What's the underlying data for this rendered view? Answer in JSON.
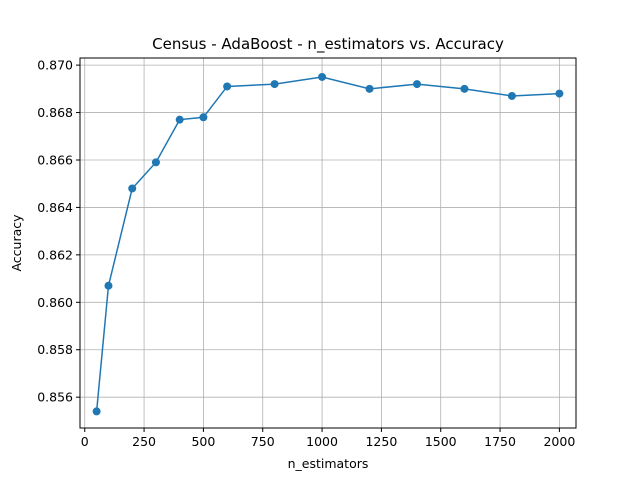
{
  "chart_data": {
    "type": "line",
    "title": "Census - AdaBoost - n_estimators vs. Accuracy",
    "xlabel": "n_estimators",
    "ylabel": "Accuracy",
    "xlim": [
      -20,
      2070
    ],
    "ylim": [
      0.8547,
      0.8703
    ],
    "x_ticks": [
      0,
      250,
      500,
      750,
      1000,
      1250,
      1500,
      1750,
      2000
    ],
    "y_ticks": [
      0.856,
      0.858,
      0.86,
      0.862,
      0.864,
      0.866,
      0.868,
      0.87
    ],
    "y_tick_labels": [
      "0.856",
      "0.858",
      "0.860",
      "0.862",
      "0.864",
      "0.866",
      "0.868",
      "0.870"
    ],
    "grid": true,
    "series": [
      {
        "color": "#1f77b4",
        "marker": "circle",
        "x": [
          50,
          100,
          200,
          300,
          400,
          500,
          600,
          800,
          1000,
          1200,
          1400,
          1600,
          1800,
          2000
        ],
        "y": [
          0.8554,
          0.8607,
          0.8648,
          0.8659,
          0.8677,
          0.8678,
          0.8691,
          0.8692,
          0.8695,
          0.869,
          0.8692,
          0.869,
          0.8687,
          0.8688
        ]
      }
    ]
  }
}
